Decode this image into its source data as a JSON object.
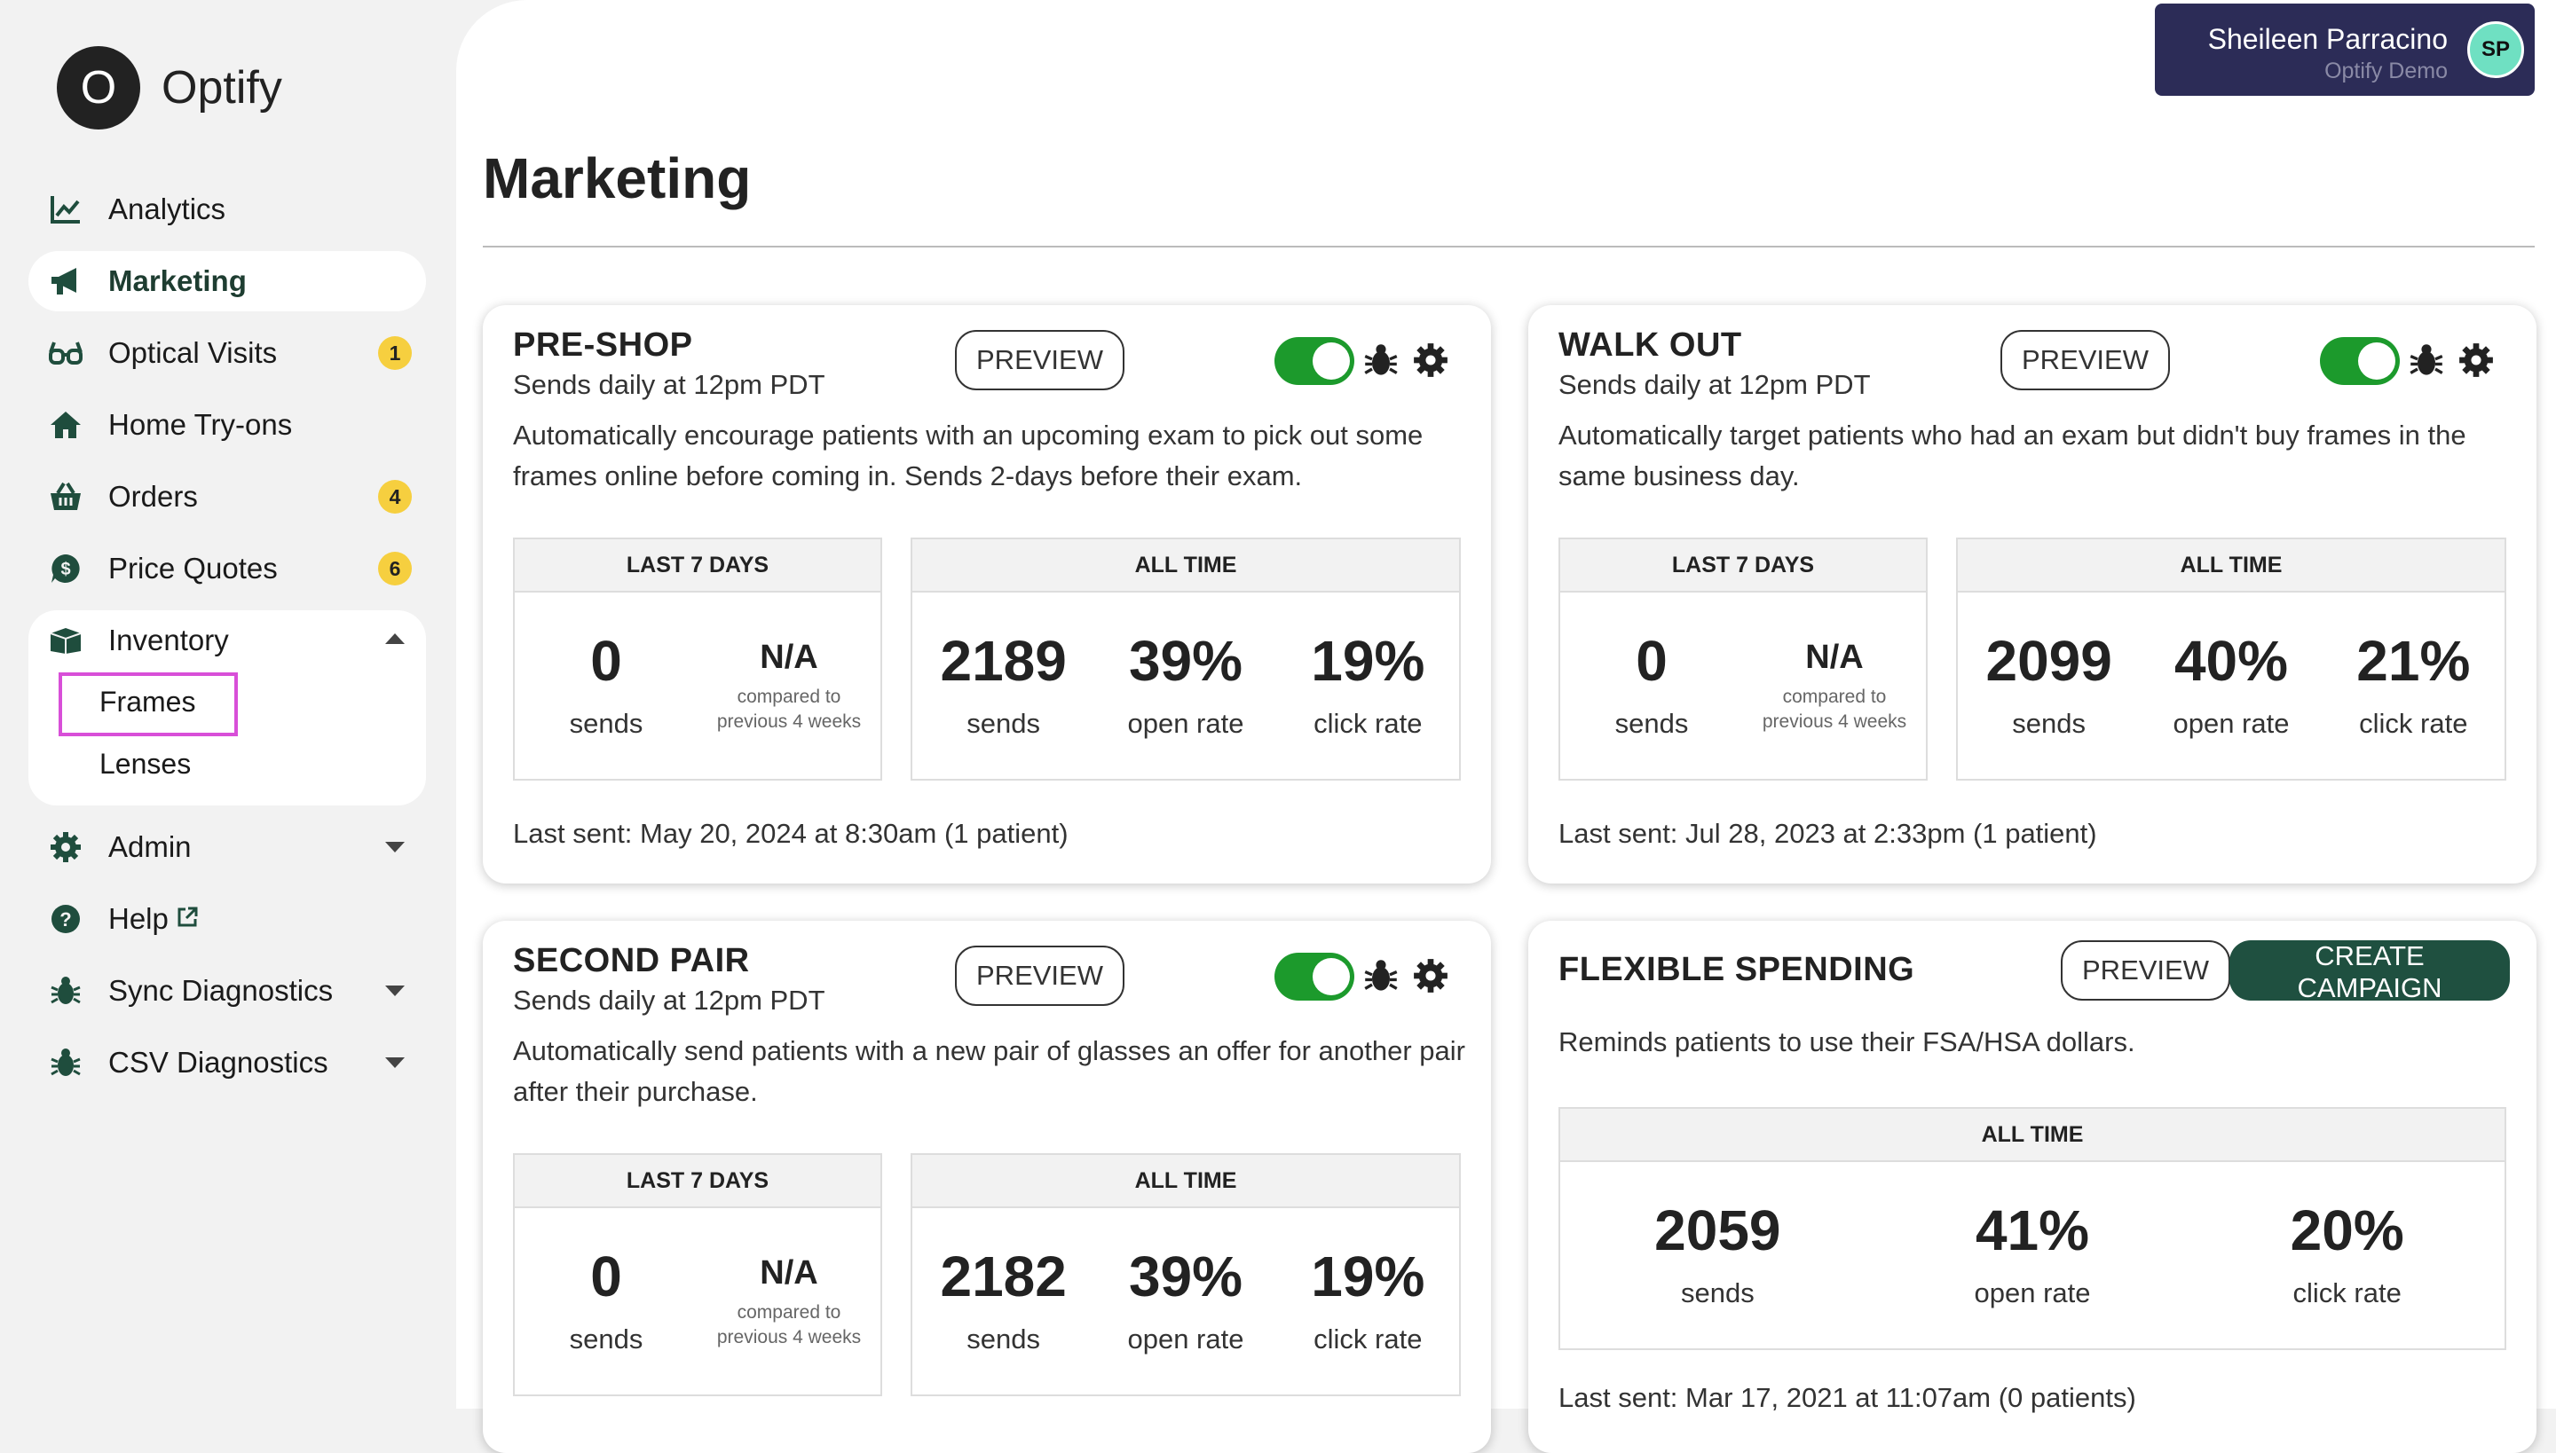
{
  "app": {
    "logo_letter": "O",
    "logo_name": "Optify"
  },
  "sidebar": {
    "items": [
      {
        "label": "Analytics",
        "icon": "chart-line-icon"
      },
      {
        "label": "Marketing",
        "icon": "megaphone-icon",
        "active": true
      },
      {
        "label": "Optical Visits",
        "icon": "glasses-icon",
        "badge": "1"
      },
      {
        "label": "Home Try-ons",
        "icon": "home-icon"
      },
      {
        "label": "Orders",
        "icon": "basket-icon",
        "badge": "4"
      },
      {
        "label": "Price Quotes",
        "icon": "dollar-icon",
        "badge": "6"
      },
      {
        "label": "Inventory",
        "icon": "box-icon",
        "expanded": true,
        "children": [
          "Frames",
          "Lenses"
        ]
      },
      {
        "label": "Admin",
        "icon": "gear-icon"
      },
      {
        "label": "Help",
        "icon": "question-icon"
      },
      {
        "label": "Sync Diagnostics",
        "icon": "bug-icon"
      },
      {
        "label": "CSV Diagnostics",
        "icon": "bug-icon"
      }
    ]
  },
  "user": {
    "name": "Sheileen Parracino",
    "org": "Optify Demo",
    "initials": "SP"
  },
  "page": {
    "title": "Marketing"
  },
  "common": {
    "preview": "PREVIEW",
    "create_campaign": "CREATE CAMPAIGN",
    "last7": "LAST 7 DAYS",
    "alltime": "ALL TIME",
    "sends": "sends",
    "open_rate": "open rate",
    "click_rate": "click rate",
    "na": "N/A",
    "compared": "compared to previous 4 weeks"
  },
  "colors": {
    "accent_green": "#1c9a2c",
    "dark_green": "#1f5040",
    "user_chip": "#2c2c57",
    "badge": "#f6cf3f",
    "highlight": "#d84fd8"
  },
  "campaigns": [
    {
      "title": "PRE-SHOP",
      "schedule": "Sends daily at 12pm PDT",
      "description": "Automatically encourage patients with an upcoming exam to pick out some frames online before coming in. Sends 2-days before their exam.",
      "enabled": true,
      "last7_sends": "0",
      "alltime_sends": "2189",
      "open_rate": "39%",
      "click_rate": "19%",
      "last_sent": "Last sent: May 20, 2024 at 8:30am (1 patient)"
    },
    {
      "title": "WALK OUT",
      "schedule": "Sends daily at 12pm PDT",
      "description": "Automatically target patients who had an exam but didn't buy frames in the same business day.",
      "enabled": true,
      "last7_sends": "0",
      "alltime_sends": "2099",
      "open_rate": "40%",
      "click_rate": "21%",
      "last_sent": "Last sent: Jul 28, 2023 at 2:33pm (1 patient)"
    },
    {
      "title": "SECOND PAIR",
      "schedule": "Sends daily at 12pm PDT",
      "description": "Automatically send patients with a new pair of glasses an offer for another pair after their purchase.",
      "enabled": true,
      "last7_sends": "0",
      "alltime_sends": "2182",
      "open_rate": "39%",
      "click_rate": "19%"
    },
    {
      "title": "FLEXIBLE SPENDING",
      "description": "Reminds patients to use their FSA/HSA dollars.",
      "alltime_sends": "2059",
      "open_rate": "41%",
      "click_rate": "20%",
      "last_sent": "Last sent: Mar 17, 2021 at 11:07am (0 patients)"
    }
  ]
}
